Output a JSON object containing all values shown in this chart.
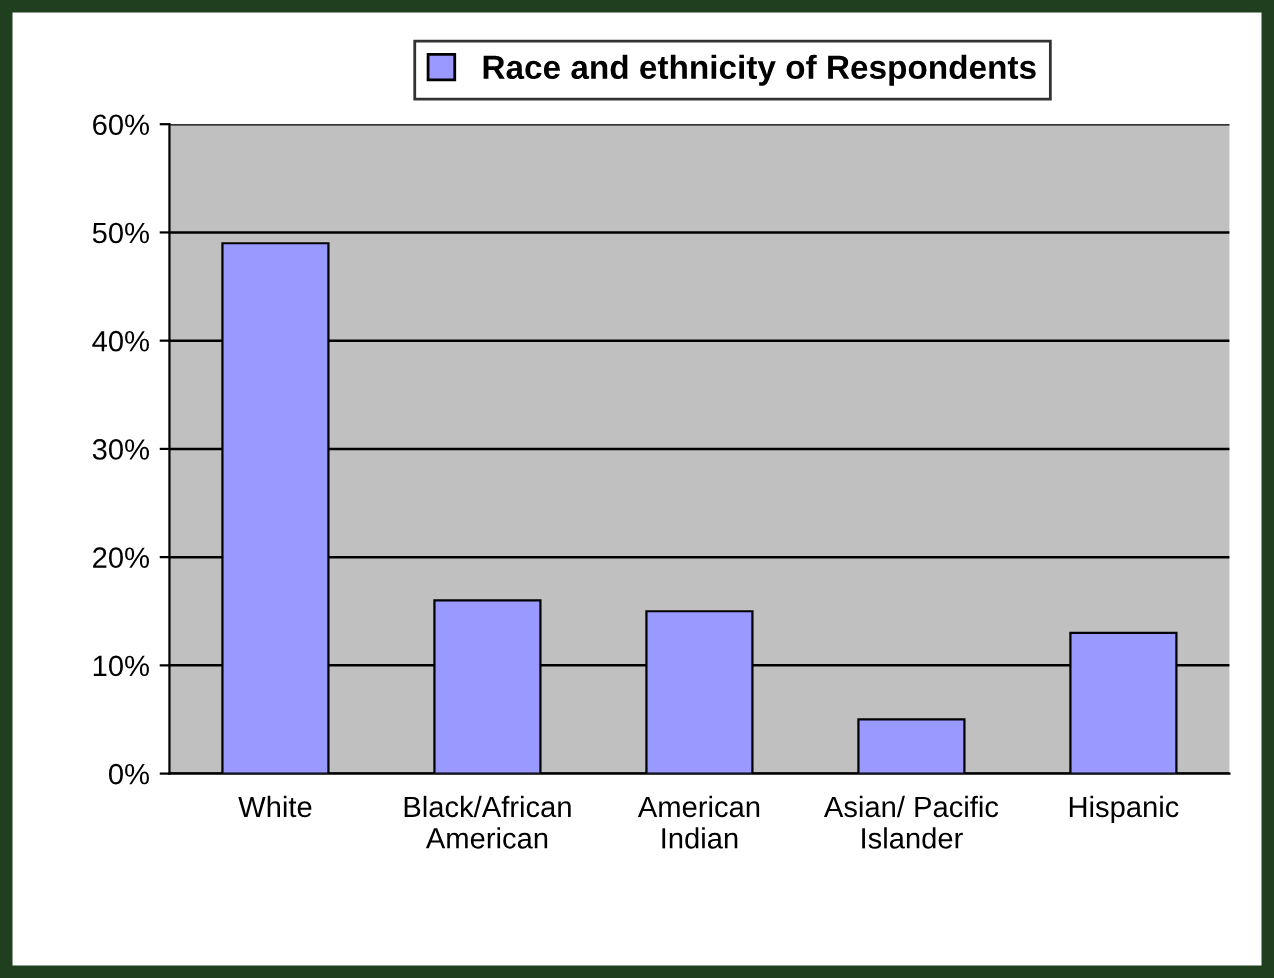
{
  "chart_data": {
    "type": "bar",
    "categories": [
      "White",
      "Black/African\nAmerican",
      "American\nIndian",
      "Asian/ Pacific\nIslander",
      "Hispanic"
    ],
    "series": [
      {
        "name": "Race and ethnicity of Respondents",
        "color": "#9999ff",
        "values": [
          49,
          16,
          15,
          5,
          13
        ]
      }
    ],
    "ylim": [
      0,
      60
    ],
    "yticks": [
      {
        "value": 0,
        "label": "0%"
      },
      {
        "value": 10,
        "label": "10%"
      },
      {
        "value": 20,
        "label": "20%"
      },
      {
        "value": 30,
        "label": "30%"
      },
      {
        "value": 40,
        "label": "40%"
      },
      {
        "value": 50,
        "label": "50%"
      },
      {
        "value": 60,
        "label": "60%"
      }
    ],
    "grid": "y",
    "legend": "top"
  }
}
